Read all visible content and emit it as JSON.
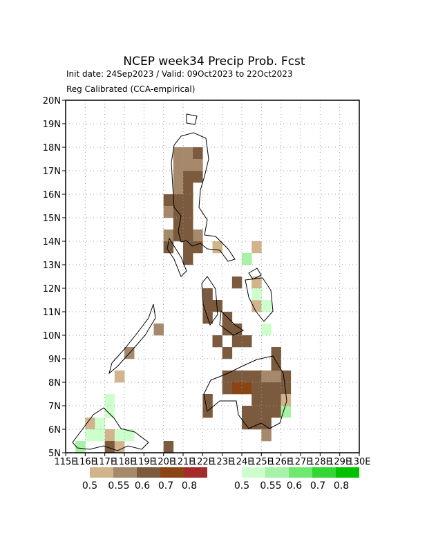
{
  "header": {
    "title": "NCEP week34 Precip Prob. Fcst",
    "line1": "Init date: 24Sep2023 / Valid: 09Oct2023 to 22Oct2023",
    "line2": "Reg Calibrated (CCA-empirical)"
  },
  "map": {
    "lonlim": [
      115,
      130
    ],
    "latlim": [
      5,
      20
    ],
    "cell_size": 0.5,
    "grid": true,
    "xticks": [
      {
        "value": 115,
        "label": "115E"
      },
      {
        "value": 116,
        "label": "116E"
      },
      {
        "value": 117,
        "label": "117E"
      },
      {
        "value": 118,
        "label": "118E"
      },
      {
        "value": 119,
        "label": "119E"
      },
      {
        "value": 120,
        "label": "120E"
      },
      {
        "value": 121,
        "label": "121E"
      },
      {
        "value": 122,
        "label": "122E"
      },
      {
        "value": 123,
        "label": "123E"
      },
      {
        "value": 124,
        "label": "124E"
      },
      {
        "value": 125,
        "label": "125E"
      },
      {
        "value": 126,
        "label": "126E"
      },
      {
        "value": 127,
        "label": "127E"
      },
      {
        "value": 128,
        "label": "128E"
      },
      {
        "value": 129,
        "label": "129E"
      },
      {
        "value": 130,
        "label": "130E"
      }
    ],
    "yticks": [
      {
        "value": 5,
        "label": "5N"
      },
      {
        "value": 6,
        "label": "6N"
      },
      {
        "value": 7,
        "label": "7N"
      },
      {
        "value": 8,
        "label": "8N"
      },
      {
        "value": 9,
        "label": "9N"
      },
      {
        "value": 10,
        "label": "10N"
      },
      {
        "value": 11,
        "label": "11N"
      },
      {
        "value": 12,
        "label": "12N"
      },
      {
        "value": 13,
        "label": "13N"
      },
      {
        "value": 14,
        "label": "14N"
      },
      {
        "value": 15,
        "label": "15N"
      },
      {
        "value": 16,
        "label": "16N"
      },
      {
        "value": 17,
        "label": "17N"
      },
      {
        "value": 18,
        "label": "18N"
      },
      {
        "value": 19,
        "label": "19N"
      },
      {
        "value": 20,
        "label": "20N"
      }
    ],
    "below": {
      "levels": [
        0.5,
        0.55,
        0.6,
        0.7,
        0.8
      ],
      "colors": [
        "#d2b48c",
        "#a6896b",
        "#7b5a3e",
        "#8b4513",
        "#a52a2a"
      ],
      "cells": [
        [
          120.5,
          17.5,
          0.55
        ],
        [
          121,
          17.5,
          0.55
        ],
        [
          121.5,
          17.5,
          0.6
        ],
        [
          120.5,
          17,
          0.55
        ],
        [
          121,
          17,
          0.55
        ],
        [
          121.5,
          17,
          0.55
        ],
        [
          120.5,
          16.5,
          0.55
        ],
        [
          121,
          16.5,
          0.6
        ],
        [
          121.5,
          16.5,
          0.6
        ],
        [
          120.5,
          16,
          0.55
        ],
        [
          121,
          16,
          0.6
        ],
        [
          120,
          15.5,
          0.6
        ],
        [
          120.5,
          15.5,
          0.6
        ],
        [
          121,
          15.5,
          0.6
        ],
        [
          120,
          15,
          0.55
        ],
        [
          120.5,
          15,
          0.6
        ],
        [
          121,
          15,
          0.6
        ],
        [
          120.5,
          14.5,
          0.6
        ],
        [
          121,
          14.5,
          0.6
        ],
        [
          121.5,
          14,
          0.55
        ],
        [
          120,
          14,
          0.55
        ],
        [
          120.5,
          14,
          0.6
        ],
        [
          121,
          14,
          0.6
        ],
        [
          120,
          13.5,
          0.6
        ],
        [
          121,
          13.5,
          0.6
        ],
        [
          121,
          13,
          0.6
        ],
        [
          122.5,
          13.5,
          0.5
        ],
        [
          121.5,
          13.5,
          0.6
        ],
        [
          122,
          11.5,
          0.6
        ],
        [
          122,
          11,
          0.6
        ],
        [
          122.5,
          11,
          0.6
        ],
        [
          122,
          10.5,
          0.6
        ],
        [
          123,
          10.5,
          0.6
        ],
        [
          123,
          10,
          0.6
        ],
        [
          123.5,
          10,
          0.6
        ],
        [
          122.5,
          9.5,
          0.6
        ],
        [
          123.5,
          9.5,
          0.6
        ],
        [
          124,
          9.5,
          0.6
        ],
        [
          123,
          9,
          0.6
        ],
        [
          124.5,
          12,
          0.5
        ],
        [
          124.5,
          11,
          0.5
        ],
        [
          123.5,
          12,
          0.6
        ],
        [
          124.5,
          13.5,
          0.5
        ],
        [
          122,
          7,
          0.6
        ],
        [
          122,
          6.5,
          0.6
        ],
        [
          123,
          8,
          0.6
        ],
        [
          123.5,
          8,
          0.6
        ],
        [
          124,
          8,
          0.6
        ],
        [
          124.5,
          8,
          0.6
        ],
        [
          125,
          8,
          0.55
        ],
        [
          125.5,
          8,
          0.55
        ],
        [
          126,
          8,
          0.6
        ],
        [
          123,
          7.5,
          0.6
        ],
        [
          123.5,
          7.5,
          0.7
        ],
        [
          124,
          7.5,
          0.7
        ],
        [
          124.5,
          7.5,
          0.6
        ],
        [
          125,
          7.5,
          0.6
        ],
        [
          125.5,
          7.5,
          0.6
        ],
        [
          126,
          7.5,
          0.6
        ],
        [
          124.5,
          7,
          0.6
        ],
        [
          125,
          7,
          0.6
        ],
        [
          125.5,
          7,
          0.6
        ],
        [
          126,
          7,
          0.5
        ],
        [
          124,
          6.5,
          0.6
        ],
        [
          124.5,
          6.5,
          0.6
        ],
        [
          125,
          6.5,
          0.6
        ],
        [
          125.5,
          6.5,
          0.6
        ],
        [
          124,
          6,
          0.6
        ],
        [
          124.5,
          6,
          0.6
        ],
        [
          125,
          6,
          0.6
        ],
        [
          125,
          5.5,
          0.55
        ],
        [
          125.5,
          8.5,
          0.6
        ],
        [
          125.5,
          9,
          0.6
        ],
        [
          119.5,
          10,
          0.55
        ],
        [
          117.5,
          8,
          0.5
        ],
        [
          118,
          9,
          0.55
        ],
        [
          116,
          6,
          0.5
        ],
        [
          117,
          5.5,
          0.5
        ],
        [
          117,
          5,
          0.6
        ],
        [
          117.5,
          5,
          0.5
        ],
        [
          120,
          5,
          0.6
        ]
      ]
    },
    "above": {
      "levels": [
        0.5,
        0.55,
        0.6,
        0.7,
        0.8
      ],
      "colors": [
        "#ccffcc",
        "#a6f2a6",
        "#6ee86e",
        "#33d633",
        "#00c000"
      ],
      "cells": [
        [
          115.5,
          5,
          0.55
        ],
        [
          116,
          5.5,
          0.5
        ],
        [
          116.5,
          6,
          0.5
        ],
        [
          117,
          6.5,
          0.5
        ],
        [
          117,
          7,
          0.5
        ],
        [
          117.5,
          5.5,
          0.5
        ],
        [
          116.5,
          5.5,
          0.5
        ],
        [
          118,
          5.5,
          0.5
        ],
        [
          124.5,
          11.5,
          0.5
        ],
        [
          125,
          10,
          0.5
        ],
        [
          126,
          6.5,
          0.55
        ],
        [
          124,
          13,
          0.55
        ],
        [
          125,
          11,
          0.5
        ]
      ]
    }
  }
}
